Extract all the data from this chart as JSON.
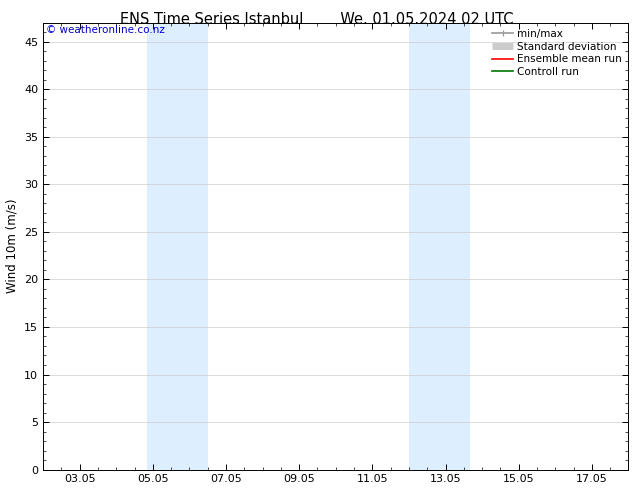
{
  "title_left": "ENS Time Series Istanbul",
  "title_right": "We. 01.05.2024 02 UTC",
  "watermark": "© weatheronline.co.nz",
  "ylabel": "Wind 10m (m/s)",
  "xtick_labels": [
    "03.05",
    "05.05",
    "07.05",
    "09.05",
    "11.05",
    "13.05",
    "15.05",
    "17.05"
  ],
  "xtick_positions": [
    2,
    4,
    6,
    8,
    10,
    12,
    14,
    16
  ],
  "xlim": [
    1,
    17
  ],
  "ylim": [
    0,
    47
  ],
  "ytick_positions": [
    0,
    5,
    10,
    15,
    20,
    25,
    30,
    35,
    40,
    45
  ],
  "ytick_labels": [
    "0",
    "5",
    "10",
    "15",
    "20",
    "25",
    "30",
    "35",
    "40",
    "45"
  ],
  "shaded_bands": [
    {
      "xmin": 3.83,
      "xmax": 5.5
    },
    {
      "xmin": 11.0,
      "xmax": 12.67
    }
  ],
  "shade_color": "#ddeeff",
  "background_color": "#ffffff",
  "grid_color": "#cccccc",
  "legend_items": [
    {
      "label": "min/max",
      "color": "#999999",
      "lw": 1.2
    },
    {
      "label": "Standard deviation",
      "color": "#cccccc",
      "lw": 5
    },
    {
      "label": "Ensemble mean run",
      "color": "#ff0000",
      "lw": 1.2
    },
    {
      "label": "Controll run",
      "color": "#007700",
      "lw": 1.2
    }
  ],
  "watermark_color": "#0000cc",
  "title_fontsize": 10.5,
  "ylabel_fontsize": 8.5,
  "tick_fontsize": 8,
  "legend_fontsize": 7.5,
  "watermark_fontsize": 7.5
}
